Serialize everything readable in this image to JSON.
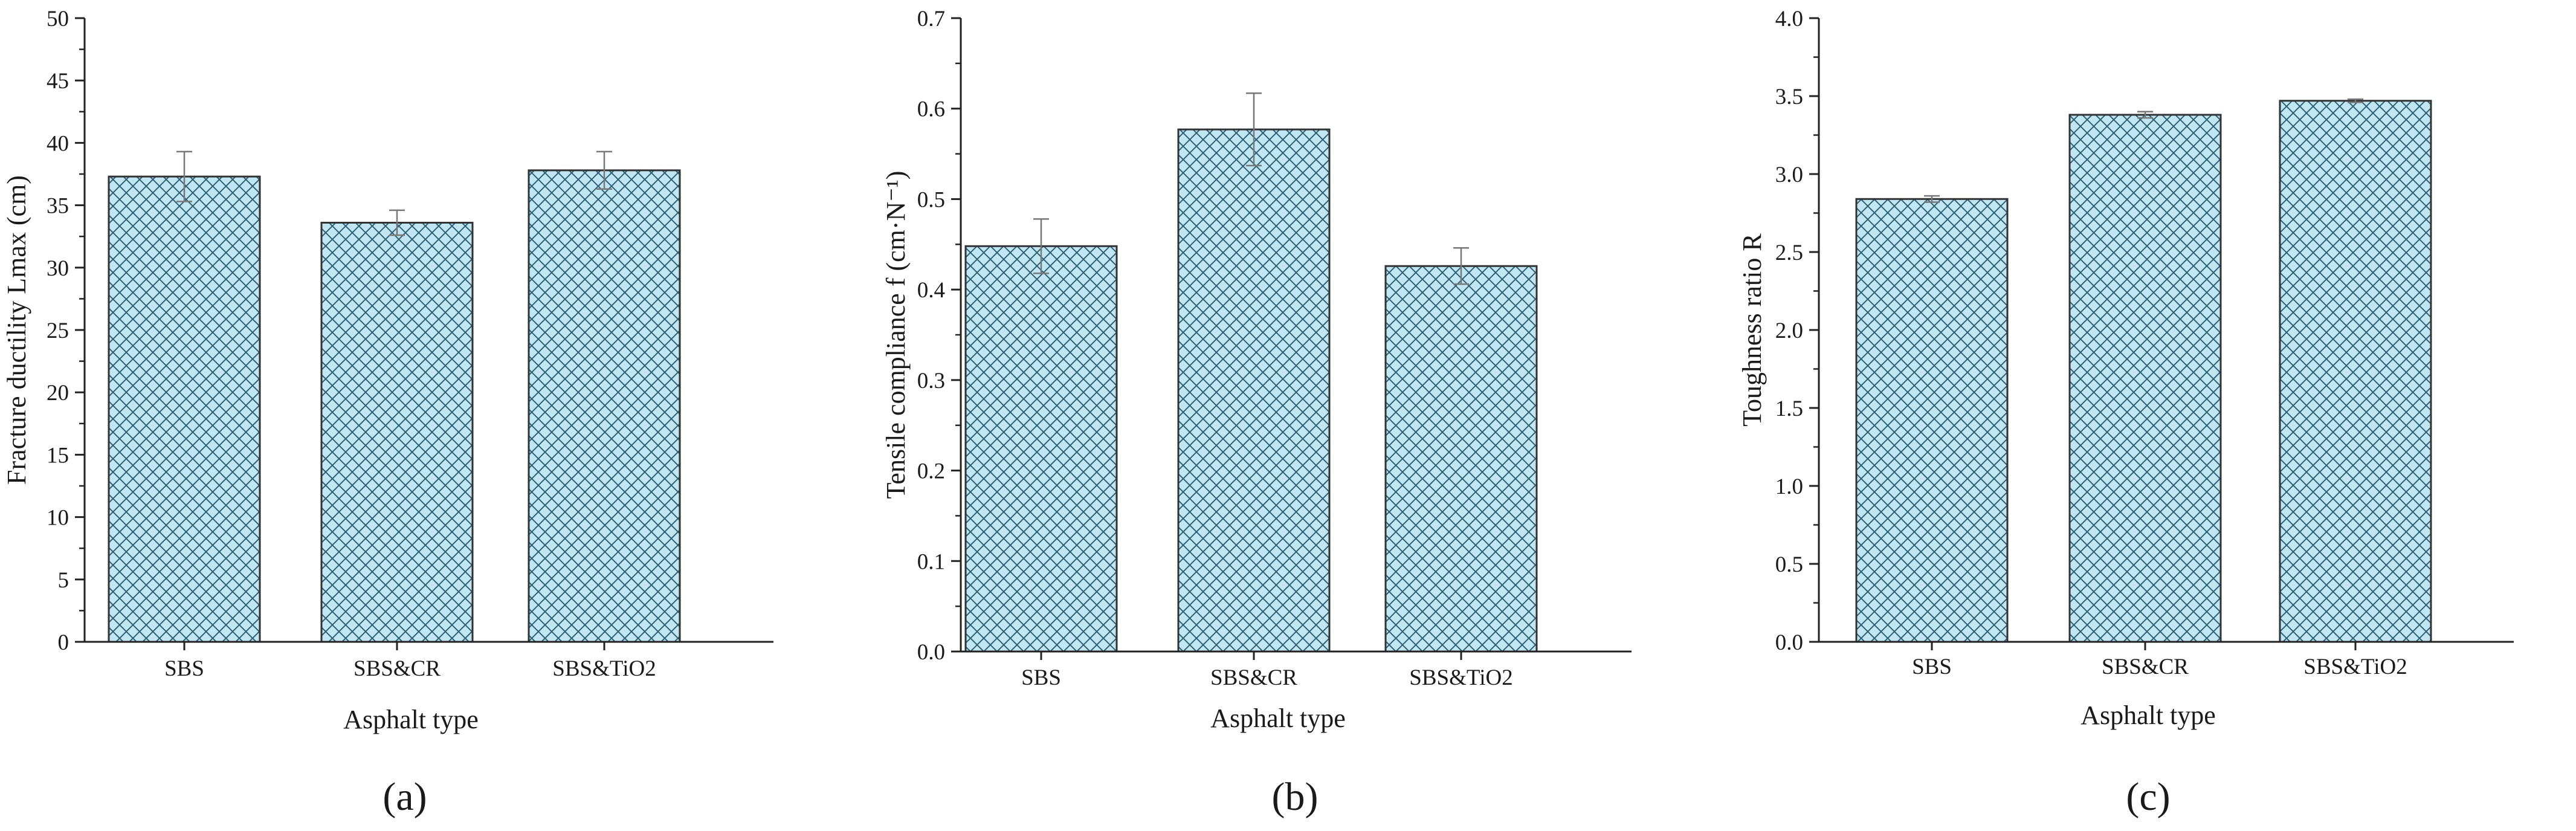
{
  "figure": {
    "bar_fill": "#bfe6f2",
    "hatch_color": "#2f5f75",
    "edge_color": "#333333",
    "error_color": "#777777"
  },
  "chart_data": [
    {
      "type": "bar",
      "panel_label": "(a)",
      "categories": [
        "SBS",
        "SBS&CR",
        "SBS&TiO2"
      ],
      "values": [
        37.3,
        33.6,
        37.8
      ],
      "errors": [
        2.0,
        1.0,
        1.5
      ],
      "ylim": [
        0,
        50
      ],
      "yticks": [
        0,
        5,
        10,
        15,
        20,
        25,
        30,
        35,
        40,
        45,
        50
      ],
      "ytick_labels": [
        "0",
        "5",
        "10",
        "15",
        "20",
        "25",
        "30",
        "35",
        "40",
        "45",
        "50"
      ],
      "xlabel": "Asphalt type",
      "ylabel": "Fracture ductility Lmax (cm)"
    },
    {
      "type": "bar",
      "panel_label": "(b)",
      "categories": [
        "SBS",
        "SBS&CR",
        "SBS&TiO2"
      ],
      "values": [
        0.448,
        0.577,
        0.426
      ],
      "errors": [
        0.03,
        0.04,
        0.02
      ],
      "ylim": [
        0,
        0.7
      ],
      "yticks": [
        0,
        0.1,
        0.2,
        0.3,
        0.4,
        0.5,
        0.6,
        0.7
      ],
      "ytick_labels": [
        "0.0",
        "0.1",
        "0.2",
        "0.3",
        "0.4",
        "0.5",
        "0.6",
        "0.7"
      ],
      "xlabel": "Asphalt type",
      "ylabel": "Tensile compliance f (cm·N⁻¹)"
    },
    {
      "type": "bar",
      "panel_label": "(c)",
      "categories": [
        "SBS",
        "SBS&CR",
        "SBS&TiO2"
      ],
      "values": [
        2.84,
        3.38,
        3.47
      ],
      "errors": [
        0.02,
        0.02,
        0.01
      ],
      "ylim": [
        0,
        4.0
      ],
      "yticks": [
        0,
        0.5,
        1.0,
        1.5,
        2.0,
        2.5,
        3.0,
        3.5,
        4.0
      ],
      "ytick_labels": [
        "0.0",
        "0.5",
        "1.0",
        "1.5",
        "2.0",
        "2.5",
        "3.0",
        "3.5",
        "4.0"
      ],
      "xlabel": "Asphalt type",
      "ylabel": "Toughness ratio R"
    }
  ]
}
